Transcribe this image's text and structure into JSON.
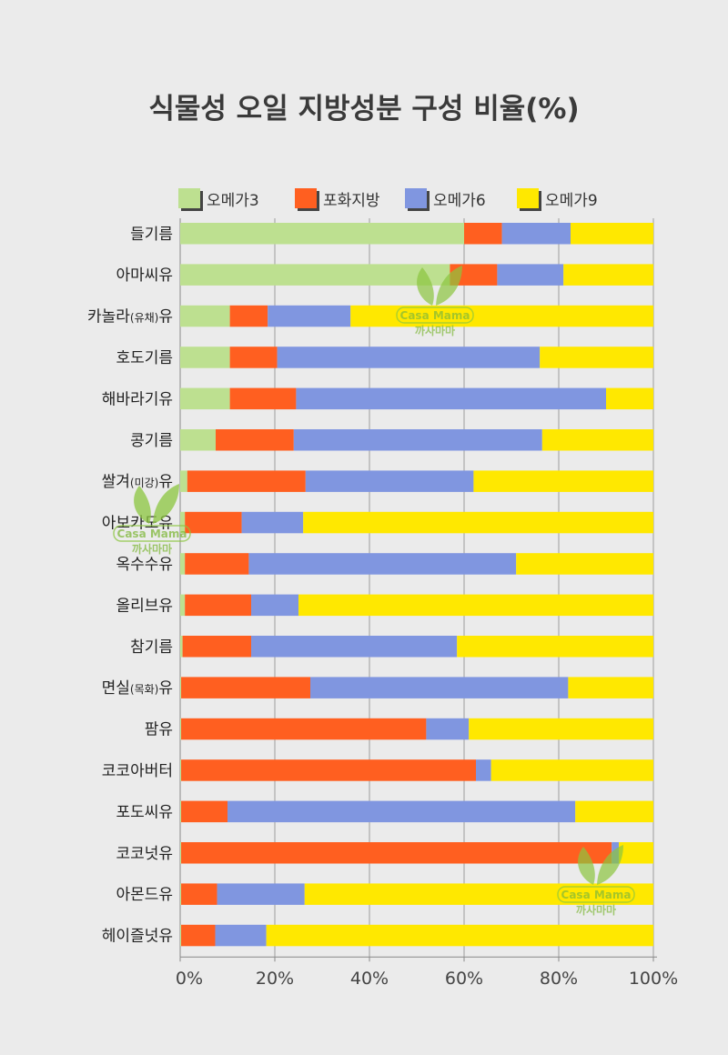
{
  "chart_data": {
    "type": "bar",
    "orientation": "horizontal",
    "stacked": true,
    "title": "식물성 오일 지방성분 구성 비율(%)",
    "legend": {
      "placement": "top"
    },
    "categories": [
      {
        "main": "들기름",
        "sub": "",
        "suffix": ""
      },
      {
        "main": "아마씨유",
        "sub": "",
        "suffix": ""
      },
      {
        "main": "카놀라",
        "sub": "(유채)",
        "suffix": "유"
      },
      {
        "main": "호도기름",
        "sub": "",
        "suffix": ""
      },
      {
        "main": "해바라기유",
        "sub": "",
        "suffix": ""
      },
      {
        "main": "콩기름",
        "sub": "",
        "suffix": ""
      },
      {
        "main": "쌀겨",
        "sub": "(미강)",
        "suffix": "유"
      },
      {
        "main": "아보카도유",
        "sub": "",
        "suffix": ""
      },
      {
        "main": "옥수수유",
        "sub": "",
        "suffix": ""
      },
      {
        "main": "올리브유",
        "sub": "",
        "suffix": ""
      },
      {
        "main": "참기름",
        "sub": "",
        "suffix": ""
      },
      {
        "main": "면실",
        "sub": "(목화)",
        "suffix": "유"
      },
      {
        "main": "팜유",
        "sub": "",
        "suffix": ""
      },
      {
        "main": "코코아버터",
        "sub": "",
        "suffix": ""
      },
      {
        "main": "포도씨유",
        "sub": "",
        "suffix": ""
      },
      {
        "main": "코코넛유",
        "sub": "",
        "suffix": ""
      },
      {
        "main": "아몬드유",
        "sub": "",
        "suffix": ""
      },
      {
        "main": "헤이즐넛유",
        "sub": "",
        "suffix": ""
      }
    ],
    "series": [
      {
        "name": "오메가3",
        "color": "#bde090",
        "values": [
          60,
          57,
          10.5,
          10.5,
          10.5,
          7.5,
          1.5,
          1,
          1,
          1,
          0.5,
          0.2,
          0.2,
          0.2,
          0.2,
          0.2,
          0.2,
          0.2
        ]
      },
      {
        "name": "포화지방",
        "color": "#ff5f20",
        "values": [
          8,
          10,
          8,
          10,
          14,
          16.5,
          25,
          12,
          13.5,
          14,
          14.5,
          27.3,
          51.8,
          62.3,
          9.8,
          91,
          7.6,
          7.2
        ]
      },
      {
        "name": "오메가6",
        "color": "#8096e0",
        "values": [
          14.5,
          14,
          17.5,
          55.5,
          65.5,
          52.5,
          35.5,
          13,
          56.5,
          10,
          43.5,
          54.5,
          9,
          3.2,
          73.5,
          1.5,
          18.5,
          10.8
        ]
      },
      {
        "name": "오메가9",
        "color": "#ffe800",
        "values": [
          17.5,
          19,
          64,
          24,
          10,
          23.5,
          38,
          74,
          29,
          75,
          41.5,
          18,
          39,
          34.3,
          16.5,
          7.3,
          73.7,
          81.8
        ]
      }
    ],
    "x_ticks": [
      "0%",
      "20%",
      "40%",
      "60%",
      "80%",
      "100%"
    ],
    "xlim": [
      0,
      100
    ],
    "grid": "vertical",
    "xlabel": "",
    "ylabel": ""
  },
  "watermark": {
    "text": "Casa Mama",
    "sub": "까사마마"
  }
}
